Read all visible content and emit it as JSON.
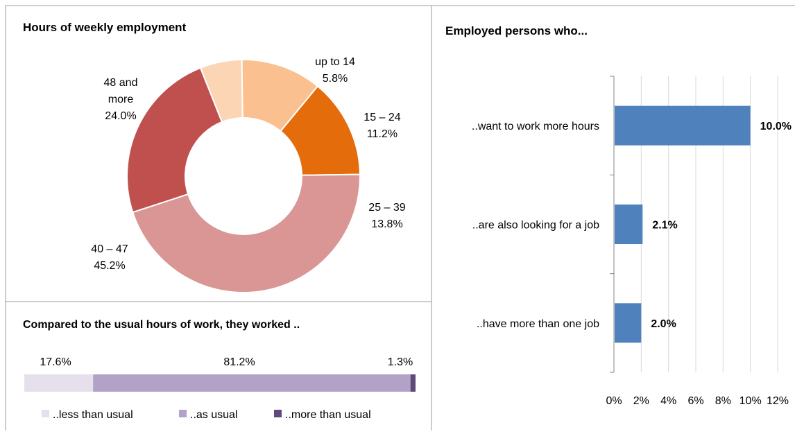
{
  "chart_data": [
    {
      "type": "pie",
      "title": "Hours of weekly employment",
      "slices": [
        {
          "label_lines": [
            "up to 14"
          ],
          "value_label": "5.8%",
          "value": 5.8,
          "color": "#FCD5B5"
        },
        {
          "label_lines": [
            "15 – 24"
          ],
          "value_label": "11.2%",
          "value": 11.2,
          "color": "#FAC090"
        },
        {
          "label_lines": [
            "25 – 39"
          ],
          "value_label": "13.8%",
          "value": 13.8,
          "color": "#E46C0A"
        },
        {
          "label_lines": [
            "40 – 47"
          ],
          "value_label": "45.2%",
          "value": 45.2,
          "color": "#D99694"
        },
        {
          "label_lines": [
            "48 and",
            "more"
          ],
          "value_label": "24.0%",
          "value": 24.0,
          "color": "#C0504D"
        }
      ]
    },
    {
      "type": "bar",
      "title": "Compared to the usual hours of work, they worked ..",
      "orientation": "horizontal-stacked",
      "segments": [
        {
          "name": "..less than usual",
          "value": 17.6,
          "value_label": "17.6%",
          "color": "#E6E0EC"
        },
        {
          "name": "..as usual",
          "value": 81.2,
          "value_label": "81.2%",
          "color": "#B3A2C7"
        },
        {
          "name": "..more than usual",
          "value": 1.3,
          "value_label": "1.3%",
          "color": "#604A7B"
        }
      ],
      "legend_position": "bottom"
    },
    {
      "type": "bar",
      "title": "Employed persons who...",
      "orientation": "horizontal",
      "categories": [
        "..want to work more hours",
        "..are also looking for a job",
        "..have more than one job"
      ],
      "values": [
        10.0,
        2.1,
        2.0
      ],
      "value_labels": [
        "10.0%",
        "2.1%",
        "2.0%"
      ],
      "xlim": [
        0,
        12
      ],
      "x_ticks": [
        "0%",
        "2%",
        "4%",
        "6%",
        "8%",
        "10%",
        "12%"
      ],
      "x_tick_values": [
        0,
        2,
        4,
        6,
        8,
        10,
        12
      ],
      "grid": true,
      "bar_color": "#4F81BD"
    }
  ]
}
